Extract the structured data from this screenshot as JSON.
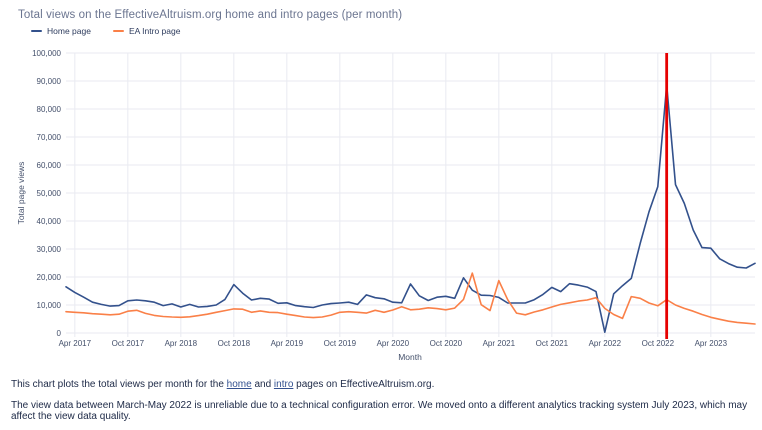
{
  "header": {
    "title": "Total views on the EffectiveAltruism.org home and intro pages (per month)"
  },
  "legend": [
    {
      "label": "Home page",
      "color": "#33518c"
    },
    {
      "label": "EA Intro page",
      "color": "#fa8048"
    }
  ],
  "chart_data": {
    "type": "line",
    "title": "Total views on the EffectiveAltruism.org home and intro pages (per month)",
    "xlabel": "Month",
    "ylabel": "Total page views",
    "ylim": [
      0,
      100000
    ],
    "grid": true,
    "legend_position": "top-left",
    "y_tick_labels": [
      "0",
      "10,000",
      "20,000",
      "30,000",
      "40,000",
      "50,000",
      "60,000",
      "70,000",
      "80,000",
      "90,000",
      "100,000"
    ],
    "x_tick_labels": [
      "Apr 2017",
      "Oct 2017",
      "Apr 2018",
      "Oct 2018",
      "Apr 2019",
      "Oct 2019",
      "Apr 2020",
      "Oct 2020",
      "Apr 2021",
      "Oct 2021",
      "Apr 2022",
      "Oct 2022",
      "Apr 2023"
    ],
    "annotation_line": {
      "x_month": "2022-11",
      "color": "#e60000"
    },
    "months": [
      "2017-03",
      "2017-04",
      "2017-05",
      "2017-06",
      "2017-07",
      "2017-08",
      "2017-09",
      "2017-10",
      "2017-11",
      "2017-12",
      "2018-01",
      "2018-02",
      "2018-03",
      "2018-04",
      "2018-05",
      "2018-06",
      "2018-07",
      "2018-08",
      "2018-09",
      "2018-10",
      "2018-11",
      "2018-12",
      "2019-01",
      "2019-02",
      "2019-03",
      "2019-04",
      "2019-05",
      "2019-06",
      "2019-07",
      "2019-08",
      "2019-09",
      "2019-10",
      "2019-11",
      "2019-12",
      "2020-01",
      "2020-02",
      "2020-03",
      "2020-04",
      "2020-05",
      "2020-06",
      "2020-07",
      "2020-08",
      "2020-09",
      "2020-10",
      "2020-11",
      "2020-12",
      "2021-01",
      "2021-02",
      "2021-03",
      "2021-04",
      "2021-05",
      "2021-06",
      "2021-07",
      "2021-08",
      "2021-09",
      "2021-10",
      "2021-11",
      "2021-12",
      "2022-01",
      "2022-02",
      "2022-03",
      "2022-04",
      "2022-05",
      "2022-06",
      "2022-07",
      "2022-08",
      "2022-09",
      "2022-10",
      "2022-11",
      "2022-12",
      "2023-01",
      "2023-02",
      "2023-03",
      "2023-04",
      "2023-05",
      "2023-06",
      "2023-07",
      "2023-08",
      "2023-09"
    ],
    "series": [
      {
        "name": "Home page",
        "color": "#33518c",
        "values": [
          16500,
          14500,
          12800,
          11000,
          10200,
          9600,
          9800,
          11500,
          11800,
          11500,
          11000,
          9800,
          10400,
          9300,
          10200,
          9300,
          9500,
          10000,
          12000,
          17300,
          14200,
          11800,
          12400,
          12100,
          10600,
          10800,
          9800,
          9400,
          9100,
          10000,
          10500,
          10700,
          11000,
          10200,
          13600,
          12600,
          12200,
          11000,
          10800,
          17500,
          13300,
          11600,
          12800,
          13100,
          12400,
          19700,
          15300,
          13500,
          13400,
          12700,
          10700,
          10700,
          10700,
          11900,
          13800,
          16300,
          14800,
          17600,
          17100,
          16400,
          14800,
          300,
          14000,
          16900,
          19500,
          32000,
          43300,
          52300,
          88500,
          53000,
          46300,
          36800,
          30500,
          30300,
          26500,
          24800,
          23500,
          23200,
          24900
        ]
      },
      {
        "name": "EA Intro page",
        "color": "#fa8048",
        "values": [
          7600,
          7400,
          7200,
          6900,
          6700,
          6500,
          6700,
          7800,
          8100,
          7000,
          6300,
          5900,
          5700,
          5600,
          5800,
          6200,
          6700,
          7400,
          8000,
          8600,
          8500,
          7400,
          7900,
          7400,
          7300,
          6700,
          6200,
          5700,
          5500,
          5700,
          6400,
          7400,
          7600,
          7400,
          7100,
          8100,
          7400,
          8200,
          9400,
          8300,
          8500,
          9000,
          8700,
          8300,
          8900,
          12000,
          21400,
          10100,
          8000,
          18700,
          11900,
          7100,
          6500,
          7500,
          8300,
          9300,
          10200,
          10800,
          11400,
          11800,
          12600,
          8800,
          6600,
          5200,
          13000,
          12400,
          10700,
          9700,
          11900,
          10000,
          8800,
          7800,
          6600,
          5600,
          4900,
          4200,
          3800,
          3500,
          3200
        ]
      }
    ]
  },
  "footer": {
    "line1": {
      "prefix": "This chart plots the total views per month for the ",
      "home_link": "home",
      "mid": " and ",
      "intro_link": "intro",
      "suffix": " pages on EffectiveAltruism.org."
    },
    "line2": "The view data between March-May 2022 is unreliable due to a technical configuration error. We moved onto a different analytics tracking system July 2023, which may affect the view data quality."
  }
}
